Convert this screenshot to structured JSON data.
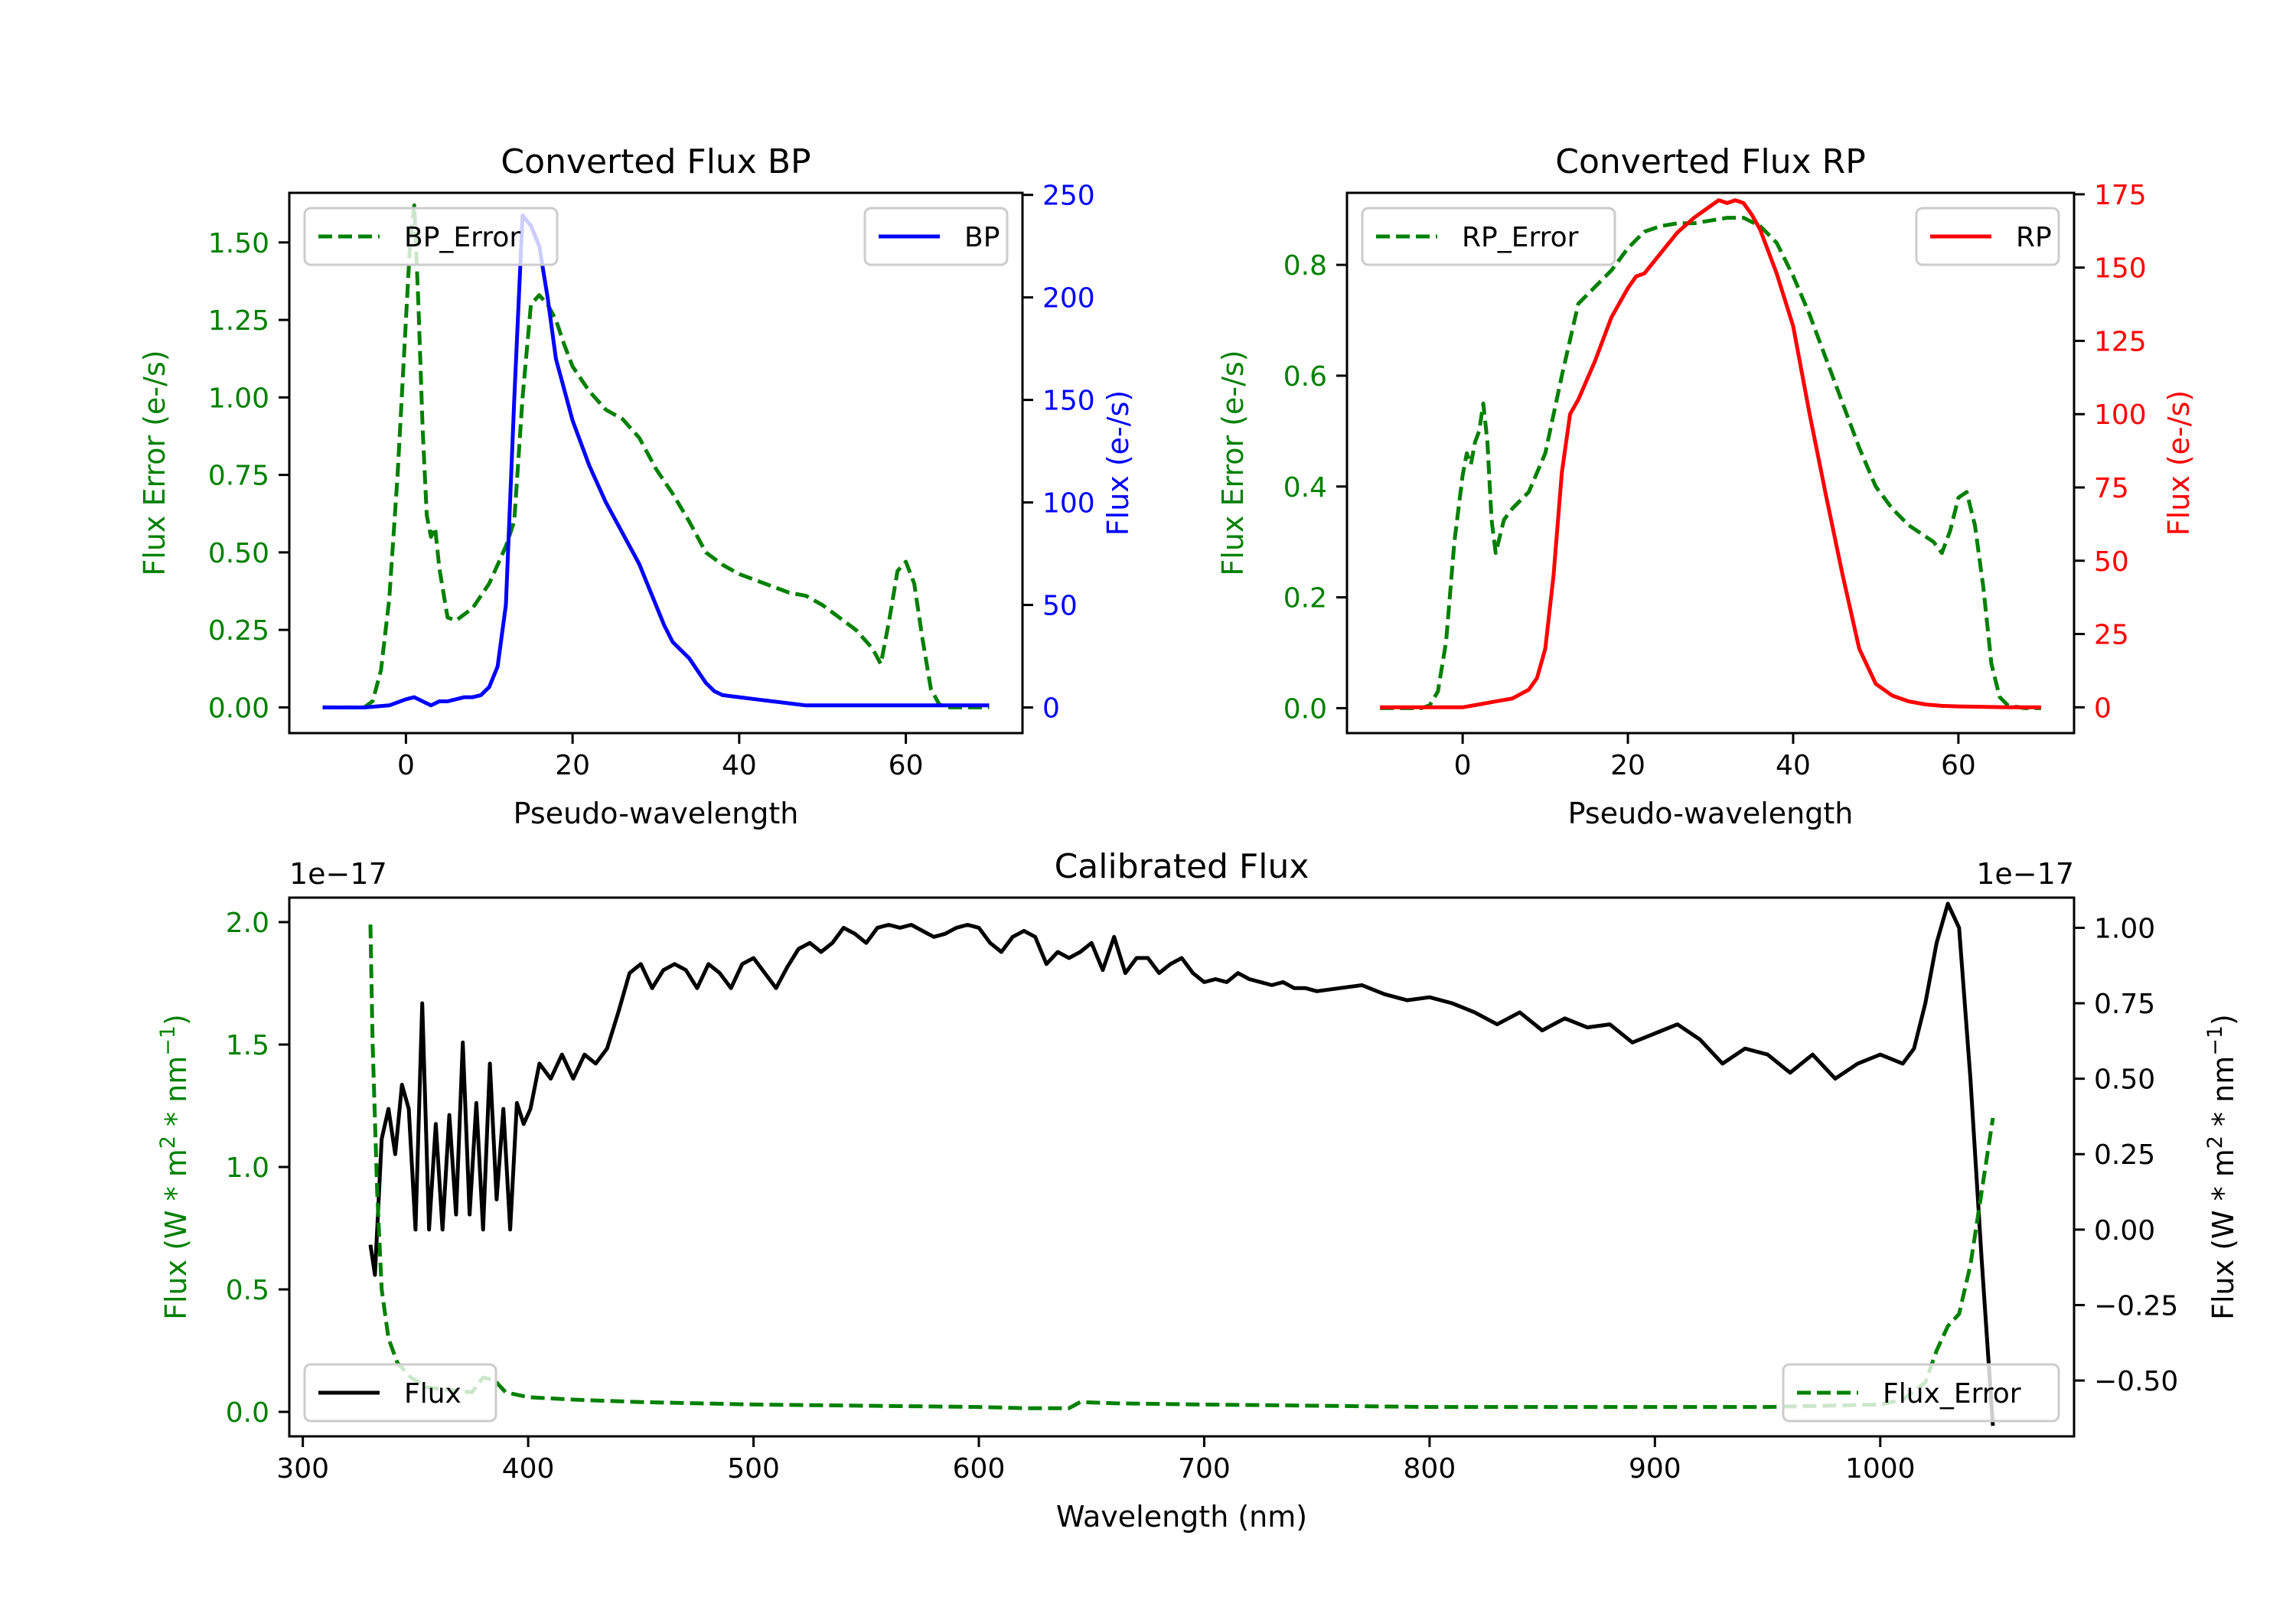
{
  "colors": {
    "green": "#008000",
    "blue": "#0000ff",
    "red": "#ff0000",
    "black": "#000000"
  },
  "chart_data": [
    {
      "id": "bp",
      "type": "line",
      "title": "Converted Flux BP",
      "xlabel": "Pseudo-wavelength",
      "xlim": [
        -14,
        74
      ],
      "xticks": [
        0,
        20,
        40,
        60
      ],
      "xtick_labels": [
        "0",
        "20",
        "40",
        "60"
      ],
      "left_axis": {
        "label": "Flux Error (e-/s)",
        "color": "#008000",
        "ylim": [
          -0.083,
          1.66
        ],
        "ticks": [
          0,
          0.25,
          0.5,
          0.75,
          1.0,
          1.25,
          1.5
        ],
        "tick_labels": [
          "0.00",
          "0.25",
          "0.50",
          "0.75",
          "1.00",
          "1.25",
          "1.50"
        ]
      },
      "right_axis": {
        "label": "Flux (e-/s)",
        "color": "#0000ff",
        "ylim": [
          -12.5,
          251
        ],
        "ticks": [
          0,
          50,
          100,
          150,
          200,
          250
        ],
        "tick_labels": [
          "0",
          "50",
          "100",
          "150",
          "200",
          "250"
        ]
      },
      "series": [
        {
          "name": "BP_Error",
          "axis": "left",
          "color": "#008000",
          "style": "dashed",
          "legend_pos": "upper left",
          "x": [
            -10,
            -5,
            -4,
            -3,
            -2,
            -1,
            0,
            0.5,
            1,
            1.5,
            2,
            2.5,
            3,
            3.5,
            4,
            5,
            6,
            8,
            10,
            11,
            12,
            13,
            14,
            15,
            16,
            17,
            18,
            19,
            20,
            22,
            24,
            26,
            28,
            30,
            32,
            34,
            36,
            38,
            40,
            42,
            44,
            46,
            48,
            50,
            52,
            54,
            56,
            57,
            58,
            59,
            60,
            61,
            62,
            63,
            64,
            65,
            66,
            68,
            70
          ],
          "values": [
            0,
            0,
            0.02,
            0.12,
            0.35,
            0.75,
            1.25,
            1.5,
            1.62,
            1.3,
            0.9,
            0.62,
            0.55,
            0.58,
            0.45,
            0.29,
            0.28,
            0.32,
            0.4,
            0.46,
            0.52,
            0.6,
            1.0,
            1.3,
            1.33,
            1.3,
            1.25,
            1.17,
            1.1,
            1.02,
            0.96,
            0.93,
            0.87,
            0.77,
            0.69,
            0.6,
            0.5,
            0.46,
            0.43,
            0.41,
            0.39,
            0.37,
            0.36,
            0.33,
            0.29,
            0.25,
            0.19,
            0.14,
            0.28,
            0.44,
            0.47,
            0.4,
            0.22,
            0.06,
            0.01,
            0,
            0,
            0,
            0
          ]
        },
        {
          "name": "BP",
          "axis": "right",
          "color": "#0000ff",
          "style": "solid",
          "legend_pos": "upper right",
          "x": [
            -10,
            -5,
            -2,
            0,
            1,
            2,
            3,
            4,
            5,
            6,
            7,
            8,
            9,
            10,
            11,
            12,
            13,
            14,
            15,
            16,
            17,
            18,
            19,
            20,
            22,
            24,
            26,
            28,
            30,
            31,
            32,
            34,
            35,
            36,
            37,
            38,
            40,
            42,
            44,
            46,
            48,
            50,
            52,
            55,
            58,
            60,
            62,
            64,
            66,
            68,
            70
          ],
          "values": [
            0,
            0,
            1,
            4,
            5,
            3,
            1,
            3,
            3,
            4,
            5,
            5,
            6,
            10,
            20,
            50,
            150,
            240,
            235,
            225,
            200,
            170,
            155,
            140,
            118,
            100,
            85,
            70,
            50,
            40,
            32,
            24,
            18,
            12,
            8,
            6,
            5,
            4,
            3,
            2,
            1,
            1,
            1,
            1,
            1,
            1,
            1,
            1,
            1,
            1,
            1
          ]
        }
      ]
    },
    {
      "id": "rp",
      "type": "line",
      "title": "Converted Flux RP",
      "xlabel": "Pseudo-wavelength",
      "xlim": [
        -14,
        74
      ],
      "xticks": [
        0,
        20,
        40,
        60
      ],
      "xtick_labels": [
        "0",
        "20",
        "40",
        "60"
      ],
      "left_axis": {
        "label": "Flux Error (e-/s)",
        "color": "#008000",
        "ylim": [
          -0.045,
          0.93
        ],
        "ticks": [
          0,
          0.2,
          0.4,
          0.6,
          0.8
        ],
        "tick_labels": [
          "0.0",
          "0.2",
          "0.4",
          "0.6",
          "0.8"
        ]
      },
      "right_axis": {
        "label": "Flux (e-/s)",
        "color": "#ff0000",
        "ylim": [
          -8.8,
          175.5
        ],
        "ticks": [
          0,
          25,
          50,
          75,
          100,
          125,
          150,
          175
        ],
        "tick_labels": [
          "0",
          "25",
          "50",
          "75",
          "100",
          "125",
          "150",
          "175"
        ]
      },
      "series": [
        {
          "name": "RP_Error",
          "axis": "left",
          "color": "#008000",
          "style": "dashed",
          "legend_pos": "upper left",
          "x": [
            -10,
            -5,
            -4,
            -3,
            -2,
            -1,
            0,
            0.5,
            1,
            1.5,
            2,
            2.5,
            3,
            3.5,
            4,
            5,
            6,
            8,
            10,
            12,
            14,
            16,
            18,
            20,
            22,
            24,
            26,
            28,
            30,
            32,
            34,
            36,
            38,
            40,
            42,
            44,
            46,
            48,
            50,
            52,
            54,
            55,
            56,
            57,
            58,
            59,
            60,
            61,
            62,
            63,
            64,
            65,
            66,
            68,
            70
          ],
          "values": [
            0,
            0,
            0.005,
            0.03,
            0.12,
            0.3,
            0.42,
            0.46,
            0.44,
            0.48,
            0.5,
            0.55,
            0.48,
            0.34,
            0.28,
            0.34,
            0.36,
            0.39,
            0.46,
            0.6,
            0.73,
            0.76,
            0.79,
            0.83,
            0.86,
            0.87,
            0.875,
            0.875,
            0.88,
            0.885,
            0.885,
            0.87,
            0.84,
            0.78,
            0.71,
            0.63,
            0.55,
            0.47,
            0.4,
            0.36,
            0.33,
            0.32,
            0.31,
            0.3,
            0.28,
            0.32,
            0.38,
            0.39,
            0.33,
            0.22,
            0.08,
            0.02,
            0.005,
            0,
            0
          ]
        },
        {
          "name": "RP",
          "axis": "right",
          "color": "#ff0000",
          "style": "solid",
          "legend_pos": "upper right",
          "x": [
            -10,
            -5,
            -2,
            0,
            2,
            4,
            6,
            8,
            9,
            10,
            11,
            12,
            13,
            14,
            16,
            18,
            20,
            21,
            22,
            24,
            26,
            28,
            30,
            31,
            32,
            33,
            34,
            35,
            36,
            38,
            40,
            42,
            44,
            46,
            48,
            50,
            52,
            54,
            56,
            58,
            60,
            62,
            64,
            66,
            68,
            70
          ],
          "values": [
            0,
            0,
            0,
            0,
            1,
            2,
            3,
            6,
            10,
            20,
            45,
            80,
            100,
            105,
            118,
            133,
            143,
            147,
            148,
            155,
            162,
            167,
            171,
            173,
            172,
            173,
            172,
            168,
            163,
            148,
            130,
            100,
            72,
            45,
            20,
            8,
            4,
            2,
            1,
            0.5,
            0.3,
            0.2,
            0.1,
            0,
            0,
            0
          ]
        }
      ]
    },
    {
      "id": "calibrated",
      "type": "line",
      "title": "Calibrated Flux",
      "xlabel": "Wavelength (nm)",
      "xlim": [
        294,
        1086
      ],
      "xticks": [
        300,
        400,
        500,
        600,
        700,
        800,
        900,
        1000
      ],
      "xtick_labels": [
        "300",
        "400",
        "500",
        "600",
        "700",
        "800",
        "900",
        "1000"
      ],
      "left_axis": {
        "label_parts": [
          "Flux (W * m",
          "2",
          " * nm",
          "−1",
          ")"
        ],
        "color": "#008000",
        "offset_text": "1e−17",
        "ylim": [
          -0.1,
          2.1
        ],
        "ticks": [
          0,
          0.5,
          1.0,
          1.5,
          2.0
        ],
        "tick_labels": [
          "0.0",
          "0.5",
          "1.0",
          "1.5",
          "2.0"
        ]
      },
      "right_axis": {
        "label_parts": [
          "Flux (W * m",
          "2",
          " * nm",
          "−1",
          ")"
        ],
        "color": "#000000",
        "offset_text": "1e−17",
        "ylim": [
          -0.685,
          1.1
        ],
        "ticks": [
          -0.5,
          -0.25,
          0,
          0.25,
          0.5,
          0.75,
          1.0
        ],
        "tick_labels": [
          "−0.50",
          "−0.25",
          "0.00",
          "0.25",
          "0.50",
          "0.75",
          "1.00"
        ]
      },
      "series": [
        {
          "name": "Flux",
          "axis": "right",
          "color": "#000000",
          "style": "solid",
          "legend_pos": "lower left",
          "x": [
            330,
            332,
            335,
            338,
            341,
            344,
            347,
            350,
            353,
            356,
            359,
            362,
            365,
            368,
            371,
            374,
            377,
            380,
            383,
            386,
            389,
            392,
            395,
            398,
            401,
            405,
            410,
            415,
            420,
            425,
            430,
            435,
            440,
            445,
            450,
            455,
            460,
            465,
            470,
            475,
            480,
            485,
            490,
            495,
            500,
            505,
            510,
            515,
            520,
            525,
            530,
            535,
            540,
            545,
            550,
            555,
            560,
            565,
            570,
            575,
            580,
            585,
            590,
            595,
            600,
            605,
            610,
            615,
            620,
            625,
            630,
            635,
            640,
            645,
            650,
            655,
            660,
            665,
            670,
            675,
            680,
            685,
            690,
            695,
            700,
            705,
            710,
            715,
            720,
            725,
            730,
            735,
            740,
            745,
            750,
            760,
            770,
            780,
            790,
            800,
            810,
            820,
            830,
            840,
            850,
            860,
            870,
            880,
            890,
            900,
            910,
            920,
            930,
            940,
            950,
            960,
            970,
            980,
            990,
            1000,
            1010,
            1015,
            1020,
            1025,
            1030,
            1035,
            1040,
            1045,
            1050
          ],
          "values": [
            -0.05,
            -0.15,
            0.3,
            0.4,
            0.25,
            0.48,
            0.4,
            0.0,
            0.75,
            0.0,
            0.35,
            0.0,
            0.38,
            0.05,
            0.62,
            0.05,
            0.42,
            0.0,
            0.55,
            0.1,
            0.4,
            0.0,
            0.42,
            0.35,
            0.4,
            0.55,
            0.5,
            0.58,
            0.5,
            0.58,
            0.55,
            0.6,
            0.72,
            0.85,
            0.88,
            0.8,
            0.86,
            0.88,
            0.86,
            0.8,
            0.88,
            0.85,
            0.8,
            0.88,
            0.9,
            0.85,
            0.8,
            0.87,
            0.93,
            0.95,
            0.92,
            0.95,
            1.0,
            0.98,
            0.95,
            1.0,
            1.01,
            1.0,
            1.01,
            0.99,
            0.97,
            0.98,
            1.0,
            1.01,
            1.0,
            0.95,
            0.92,
            0.97,
            0.99,
            0.97,
            0.88,
            0.92,
            0.9,
            0.92,
            0.95,
            0.86,
            0.97,
            0.85,
            0.9,
            0.9,
            0.85,
            0.88,
            0.9,
            0.85,
            0.82,
            0.83,
            0.82,
            0.85,
            0.83,
            0.82,
            0.81,
            0.82,
            0.8,
            0.8,
            0.79,
            0.8,
            0.81,
            0.78,
            0.76,
            0.77,
            0.75,
            0.72,
            0.68,
            0.72,
            0.66,
            0.7,
            0.67,
            0.68,
            0.62,
            0.65,
            0.68,
            0.63,
            0.55,
            0.6,
            0.58,
            0.52,
            0.58,
            0.5,
            0.55,
            0.58,
            0.55,
            0.6,
            0.75,
            0.95,
            1.08,
            1.0,
            0.5,
            -0.1,
            -0.65
          ]
        },
        {
          "name": "Flux_Error",
          "axis": "left",
          "color": "#008000",
          "style": "dashed",
          "legend_pos": "lower right",
          "x": [
            330,
            331,
            333,
            335,
            338,
            342,
            348,
            355,
            365,
            375,
            380,
            385,
            390,
            400,
            420,
            450,
            500,
            550,
            600,
            620,
            640,
            645,
            660,
            700,
            750,
            800,
            850,
            900,
            950,
            1000,
            1010,
            1020,
            1025,
            1030,
            1035,
            1040,
            1045,
            1050
          ],
          "values": [
            1.99,
            1.5,
            0.9,
            0.5,
            0.3,
            0.2,
            0.14,
            0.1,
            0.09,
            0.08,
            0.14,
            0.13,
            0.08,
            0.06,
            0.05,
            0.04,
            0.03,
            0.025,
            0.02,
            0.015,
            0.015,
            0.04,
            0.035,
            0.03,
            0.025,
            0.02,
            0.02,
            0.02,
            0.02,
            0.03,
            0.05,
            0.12,
            0.25,
            0.35,
            0.4,
            0.6,
            0.9,
            1.2
          ]
        }
      ]
    }
  ]
}
